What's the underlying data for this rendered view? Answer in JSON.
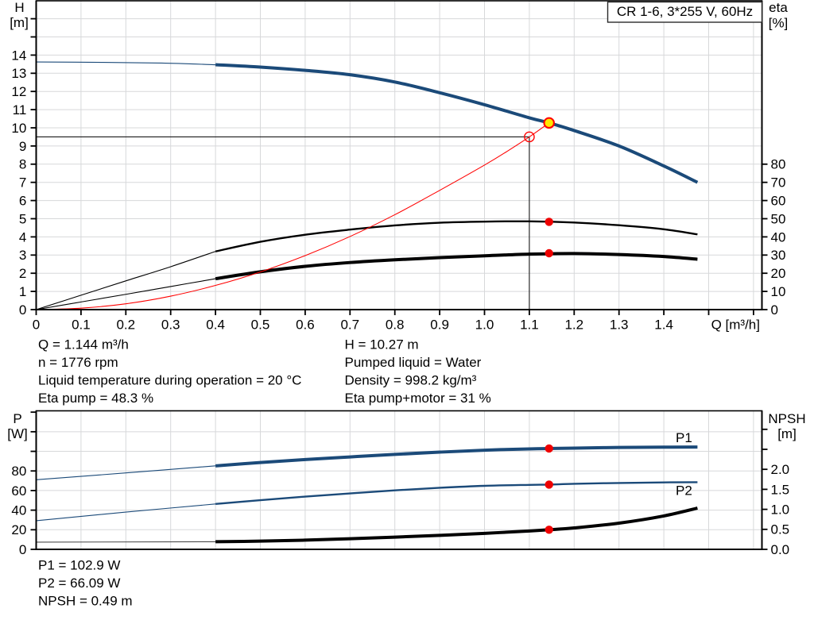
{
  "title_box": {
    "label": "CR 1-6, 3*255 V, 60Hz"
  },
  "info_top": {
    "left": [
      "Q = 1.144 m³/h",
      "n = 1776 rpm",
      "Liquid temperature during operation = 20 °C",
      "Eta pump = 48.3 %"
    ],
    "right": [
      "H = 10.27 m",
      "Pumped liquid = Water",
      "Density = 998.2 kg/m³",
      "Eta pump+motor = 31 %"
    ]
  },
  "info_bottom": [
    "P1 = 102.9 W",
    "P2 = 66.09 W",
    "NPSH = 0.49 m"
  ],
  "colors": {
    "curve_blue": "#1b4a79",
    "curve_black": "#000000",
    "curve_red": "#ff0000",
    "dot_red": "#ee0000",
    "duty_yellow": "#ffe800",
    "grid": "#d7d8da",
    "frame": "#000000",
    "thin_gray": "#4a4a4a"
  },
  "chart_data": [
    {
      "id": "qh-chart",
      "type": "line",
      "title": "CR 1-6, 3*255 V, 60Hz",
      "x_axis": {
        "title": "Q [m³/h]",
        "min": 0,
        "max": 1.62,
        "ticks": [
          0,
          0.1,
          0.2,
          0.3,
          0.4,
          0.5,
          0.6,
          0.7,
          0.8,
          0.9,
          1.0,
          1.1,
          1.2,
          1.3,
          1.4,
          1.5,
          1.6
        ],
        "tick_labels": [
          "0",
          "0.1",
          "0.2",
          "0.3",
          "0.4",
          "0.5",
          "0.6",
          "0.7",
          "0.8",
          "0.9",
          "1.0",
          "1.1",
          "1.2",
          "1.3",
          "1.4"
        ]
      },
      "left_axis": {
        "title_lines": [
          "H",
          "[m]"
        ],
        "unit": "m",
        "min": 0,
        "max": 17,
        "ticks": [
          0,
          1,
          2,
          3,
          4,
          5,
          6,
          7,
          8,
          9,
          10,
          11,
          12,
          13,
          14,
          15,
          16
        ],
        "tick_labels": [
          "0",
          "1",
          "2",
          "3",
          "4",
          "5",
          "6",
          "7",
          "8",
          "9",
          "10",
          "11",
          "12",
          "13",
          "14"
        ]
      },
      "right_axis": {
        "title_lines": [
          "eta",
          "[%]"
        ],
        "unit": "%",
        "min": 0,
        "max": 170,
        "ticks": [
          0,
          10,
          20,
          30,
          40,
          50,
          60,
          70,
          80
        ],
        "tick_labels": [
          "0",
          "10",
          "20",
          "30",
          "40",
          "50",
          "60",
          "70",
          "80"
        ]
      },
      "series": [
        {
          "name": "qh-lead-in",
          "axis": "left",
          "color": "curve_blue",
          "weight": "lead",
          "points": [
            [
              0,
              13.62
            ],
            [
              0.15,
              13.6
            ],
            [
              0.28,
              13.56
            ],
            [
              0.4,
              13.47
            ]
          ]
        },
        {
          "name": "qh-curve",
          "axis": "left",
          "color": "curve_blue",
          "weight": "main",
          "points": [
            [
              0.4,
              13.47
            ],
            [
              0.5,
              13.34
            ],
            [
              0.6,
              13.16
            ],
            [
              0.7,
              12.92
            ],
            [
              0.8,
              12.52
            ],
            [
              0.9,
              11.93
            ],
            [
              1.0,
              11.27
            ],
            [
              1.1,
              10.55
            ],
            [
              1.144,
              10.27
            ],
            [
              1.2,
              9.85
            ],
            [
              1.3,
              9.0
            ],
            [
              1.4,
              7.9
            ],
            [
              1.475,
              7.0
            ]
          ]
        },
        {
          "name": "eta-pump-lead-in",
          "axis": "right",
          "color": "curve_black",
          "weight": "lead",
          "points": [
            [
              0,
              0
            ],
            [
              0.1,
              7.9
            ],
            [
              0.2,
              15.8
            ],
            [
              0.3,
              23.6
            ],
            [
              0.4,
              32
            ]
          ]
        },
        {
          "name": "eta-pump-curve",
          "axis": "right",
          "color": "curve_black",
          "weight": "secondary",
          "points": [
            [
              0.4,
              32
            ],
            [
              0.5,
              37.3
            ],
            [
              0.6,
              41.2
            ],
            [
              0.7,
              44.0
            ],
            [
              0.8,
              46.3
            ],
            [
              0.9,
              47.8
            ],
            [
              1.0,
              48.4
            ],
            [
              1.1,
              48.55
            ],
            [
              1.2,
              47.9
            ],
            [
              1.3,
              46.4
            ],
            [
              1.4,
              44.2
            ],
            [
              1.475,
              41.4
            ]
          ]
        },
        {
          "name": "eta-pump-motor-lead-in",
          "axis": "right",
          "color": "curve_black",
          "weight": "lead",
          "points": [
            [
              0,
              0
            ],
            [
              0.1,
              4.2
            ],
            [
              0.2,
              8.4
            ],
            [
              0.3,
              12.7
            ],
            [
              0.4,
              17
            ]
          ]
        },
        {
          "name": "eta-pump-motor-curve",
          "axis": "right",
          "color": "curve_black",
          "weight": "main",
          "points": [
            [
              0.4,
              17
            ],
            [
              0.5,
              20.8
            ],
            [
              0.6,
              23.8
            ],
            [
              0.7,
              25.9
            ],
            [
              0.8,
              27.4
            ],
            [
              0.9,
              28.6
            ],
            [
              1.0,
              29.6
            ],
            [
              1.1,
              30.5
            ],
            [
              1.2,
              30.85
            ],
            [
              1.3,
              30.3
            ],
            [
              1.4,
              29.2
            ],
            [
              1.475,
              27.7
            ]
          ]
        },
        {
          "name": "system-curve",
          "axis": "left",
          "color": "curve_red",
          "weight": "hair",
          "points": [
            [
              0,
              0
            ],
            [
              0.1,
              0.08
            ],
            [
              0.2,
              0.32
            ],
            [
              0.3,
              0.74
            ],
            [
              0.4,
              1.33
            ],
            [
              0.5,
              2.07
            ],
            [
              0.6,
              2.97
            ],
            [
              0.7,
              4.02
            ],
            [
              0.8,
              5.22
            ],
            [
              0.9,
              6.56
            ],
            [
              1.0,
              7.95
            ],
            [
              1.05,
              8.7
            ],
            [
              1.1,
              9.5
            ],
            [
              1.144,
              10.27
            ]
          ]
        }
      ],
      "reference_lines": {
        "rated_q": 1.1,
        "rated_h": 9.5
      },
      "markers": [
        {
          "name": "duty-point-marker",
          "x": 1.144,
          "axis": "left",
          "value": 10.27,
          "style": "yellow"
        },
        {
          "name": "rated-point-marker",
          "x": 1.1,
          "axis": "left",
          "value": 9.5,
          "style": "open"
        },
        {
          "name": "eta-pump-dot",
          "x": 1.144,
          "axis": "right",
          "value": 48.3,
          "style": "red"
        },
        {
          "name": "eta-pump-motor-dot",
          "x": 1.144,
          "axis": "right",
          "value": 31,
          "style": "red"
        }
      ]
    },
    {
      "id": "power-npsh-chart",
      "type": "line",
      "x_axis": {
        "title": "",
        "min": 0,
        "max": 1.62,
        "ticks": [],
        "tick_labels": []
      },
      "left_axis": {
        "title_lines": [
          "P",
          "[W]"
        ],
        "unit": "W",
        "min": 0,
        "max": 141,
        "ticks": [
          0,
          20,
          40,
          60,
          80,
          100,
          120,
          140
        ],
        "tick_labels": [
          "0",
          "20",
          "40",
          "60",
          "80"
        ]
      },
      "right_axis": {
        "title_lines": [
          "NPSH",
          "[m]"
        ],
        "unit": "m",
        "min": 0,
        "max": 3.46,
        "ticks": [
          0,
          0.5,
          1.0,
          1.5,
          2.0,
          2.5,
          3.0
        ],
        "tick_labels": [
          "0.0",
          "0.5",
          "1.0",
          "1.5",
          "2.0"
        ]
      },
      "series": [
        {
          "name": "p1-lead-in",
          "axis": "left",
          "color": "curve_blue",
          "weight": "lead",
          "points": [
            [
              0,
              71
            ],
            [
              0.2,
              78
            ],
            [
              0.4,
              85.2
            ]
          ]
        },
        {
          "name": "p1-curve",
          "axis": "left",
          "color": "curve_blue",
          "weight": "main",
          "label": "P1",
          "points": [
            [
              0.4,
              85.2
            ],
            [
              0.5,
              88.6
            ],
            [
              0.6,
              91.6
            ],
            [
              0.7,
              94.3
            ],
            [
              0.8,
              96.9
            ],
            [
              0.9,
              99.2
            ],
            [
              1.0,
              101.2
            ],
            [
              1.1,
              102.5
            ],
            [
              1.144,
              102.9
            ],
            [
              1.2,
              103.3
            ],
            [
              1.3,
              104.0
            ],
            [
              1.4,
              104.3
            ],
            [
              1.475,
              104.4
            ]
          ]
        },
        {
          "name": "p2-lead-in",
          "axis": "left",
          "color": "curve_blue",
          "weight": "lead",
          "points": [
            [
              0,
              29.2
            ],
            [
              0.2,
              38
            ],
            [
              0.4,
              46.3
            ]
          ]
        },
        {
          "name": "p2-curve",
          "axis": "left",
          "color": "curve_blue",
          "weight": "secondary",
          "label": "P2",
          "points": [
            [
              0.4,
              46.3
            ],
            [
              0.5,
              50.2
            ],
            [
              0.6,
              53.8
            ],
            [
              0.7,
              57.1
            ],
            [
              0.8,
              60.2
            ],
            [
              0.9,
              62.8
            ],
            [
              1.0,
              64.8
            ],
            [
              1.1,
              65.8
            ],
            [
              1.144,
              66.09
            ],
            [
              1.2,
              66.9
            ],
            [
              1.3,
              67.7
            ],
            [
              1.4,
              68.3
            ],
            [
              1.475,
              68.5
            ]
          ]
        },
        {
          "name": "npsh-lead-in",
          "axis": "right",
          "color": "thin_gray",
          "weight": "lead",
          "points": [
            [
              0,
              0.18
            ],
            [
              0.4,
              0.19
            ]
          ]
        },
        {
          "name": "npsh-curve",
          "axis": "right",
          "color": "curve_black",
          "weight": "main",
          "points": [
            [
              0.4,
              0.19
            ],
            [
              0.5,
              0.205
            ],
            [
              0.6,
              0.23
            ],
            [
              0.7,
              0.265
            ],
            [
              0.8,
              0.305
            ],
            [
              0.9,
              0.35
            ],
            [
              1.0,
              0.4
            ],
            [
              1.1,
              0.46
            ],
            [
              1.144,
              0.49
            ],
            [
              1.2,
              0.535
            ],
            [
              1.3,
              0.655
            ],
            [
              1.4,
              0.835
            ],
            [
              1.475,
              1.03
            ]
          ]
        }
      ],
      "reference_lines": null,
      "markers": [
        {
          "name": "p1-dot",
          "x": 1.144,
          "axis": "left",
          "value": 102.9,
          "style": "red"
        },
        {
          "name": "p2-dot",
          "x": 1.144,
          "axis": "left",
          "value": 66.09,
          "style": "red"
        },
        {
          "name": "npsh-dot",
          "x": 1.144,
          "axis": "right",
          "value": 0.49,
          "style": "red"
        }
      ]
    }
  ]
}
